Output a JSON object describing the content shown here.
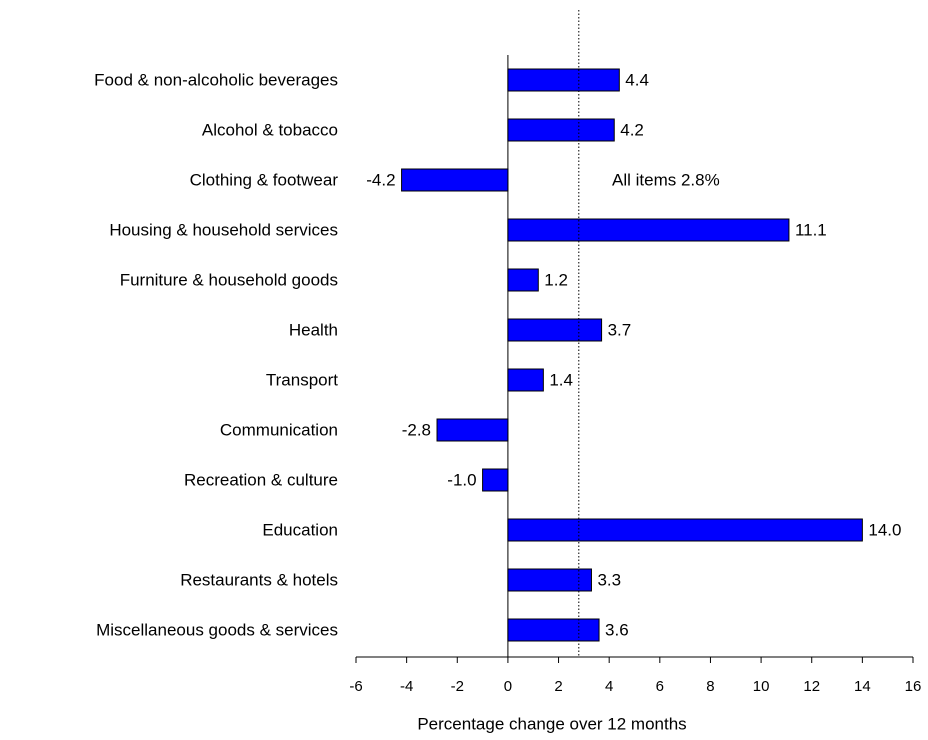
{
  "chart_data": {
    "type": "hbar",
    "categories": [
      "Food & non-alcoholic beverages",
      "Alcohol & tobacco",
      "Clothing & footwear",
      "Housing & household services",
      "Furniture & household goods",
      "Health",
      "Transport",
      "Communication",
      "Recreation & culture",
      "Education",
      "Restaurants & hotels",
      "Miscellaneous goods & services"
    ],
    "values": [
      4.4,
      4.2,
      -4.2,
      11.1,
      1.2,
      3.7,
      1.4,
      -2.8,
      -1.0,
      14.0,
      3.3,
      3.6
    ],
    "value_labels": [
      "4.4",
      "4.2",
      "-4.2",
      "11.1",
      "1.2",
      "3.7",
      "1.4",
      "-2.8",
      "-1.0",
      "14.0",
      "3.3",
      "3.6"
    ],
    "color": "#0000ff",
    "xlim": [
      -6,
      16
    ],
    "xticks": [
      -6,
      -4,
      -2,
      0,
      2,
      4,
      6,
      8,
      10,
      12,
      14,
      16
    ],
    "x_label": "Percentage change over 12 months",
    "reference_line": 2.8,
    "annotation": "All items 2.8%"
  }
}
